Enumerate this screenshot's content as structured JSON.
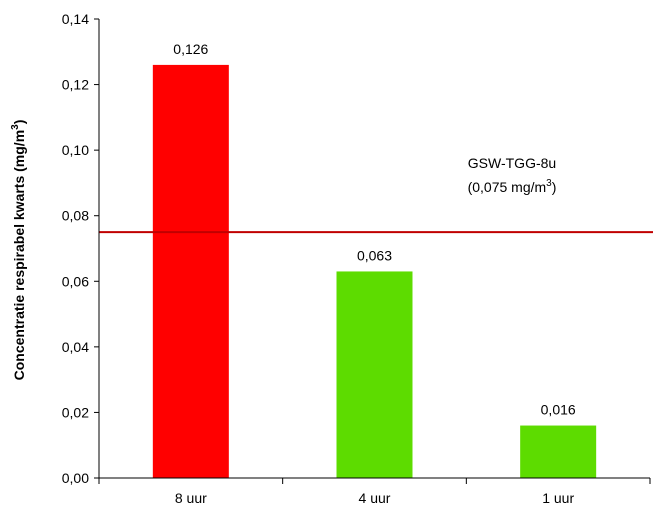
{
  "chart_data": {
    "type": "bar",
    "categories": [
      "8 uur",
      "4 uur",
      "1 uur"
    ],
    "values": [
      0.126,
      0.063,
      0.016
    ],
    "value_labels": [
      "0,126",
      "0,063",
      "0,016"
    ],
    "bar_colors": [
      "#ff0000",
      "#5ddc00",
      "#5ddc00"
    ],
    "ylabel_main": "Concentratie respirabel kwarts (mg/m",
    "ylabel_sup": "3",
    "ylabel_close": ")",
    "ylim": [
      0,
      0.14
    ],
    "yticks": [
      0,
      0.02,
      0.04,
      0.06,
      0.08,
      0.1,
      0.12,
      0.14
    ],
    "ytick_labels": [
      "0,00",
      "0,02",
      "0,04",
      "0,06",
      "0,08",
      "0,10",
      "0,12",
      "0,14"
    ],
    "grid": false,
    "reference_line": {
      "value": 0.075,
      "color": "#c00000",
      "label_line1": "GSW-TGG-8u",
      "label_line2_main": "(0,075 mg/m",
      "label_line2_sup": "3",
      "label_line2_close": ")"
    }
  }
}
